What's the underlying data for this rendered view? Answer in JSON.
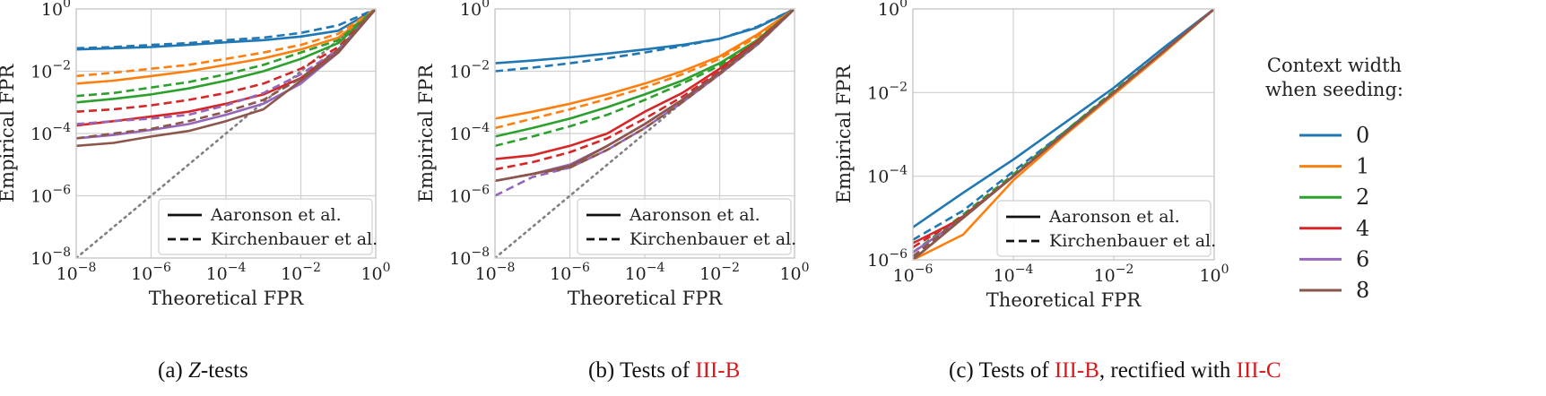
{
  "colors": {
    "0": "#1f77b4",
    "1": "#ff7f0e",
    "2": "#2ca02c",
    "4": "#d62728",
    "6": "#9467bd",
    "8": "#8c564b",
    "diag": "#808080"
  },
  "context_legend": {
    "title_line1": "Context width",
    "title_line2": "when seeding:",
    "entries": [
      "0",
      "1",
      "2",
      "4",
      "6",
      "8"
    ]
  },
  "captions": {
    "a": {
      "prefix": "(a) ",
      "italic": "Z",
      "suffix": "-tests"
    },
    "b": {
      "prefix": "(b) Tests of ",
      "ref1": "III-B"
    },
    "c": {
      "prefix": "(c) Tests of ",
      "ref1": "III-B",
      "middle": ", rectified with ",
      "ref2": "III-C"
    }
  },
  "chart_data": [
    {
      "type": "line",
      "title": "",
      "xlabel": "Theoretical FPR",
      "ylabel": "Empirical FPR",
      "xscale": "log",
      "yscale": "log",
      "xlim": [
        1e-08,
        1
      ],
      "ylim": [
        1e-08,
        1
      ],
      "xticks": [
        "10^-8",
        "10^-6",
        "10^-4",
        "10^-2",
        "10^0"
      ],
      "yticks": [
        "10^-8",
        "10^-6",
        "10^-4",
        "10^-2",
        "10^0"
      ],
      "legend": {
        "placement": "lower-right",
        "entries": [
          "Aaronson et al.",
          "Kirchenbauer et al."
        ]
      },
      "x": [
        1e-08,
        1e-07,
        1e-06,
        1e-05,
        0.0001,
        0.001,
        0.01,
        0.1,
        1
      ],
      "diagonal": true,
      "series": [
        {
          "name": "0",
          "method": "Aaronson et al.",
          "values": [
            0.05,
            0.055,
            0.06,
            0.07,
            0.085,
            0.1,
            0.13,
            0.2,
            1
          ]
        },
        {
          "name": "0",
          "method": "Kirchenbauer et al.",
          "values": [
            0.055,
            0.06,
            0.07,
            0.08,
            0.1,
            0.12,
            0.17,
            0.3,
            1
          ]
        },
        {
          "name": "1",
          "method": "Aaronson et al.",
          "values": [
            0.004,
            0.005,
            0.007,
            0.01,
            0.016,
            0.026,
            0.05,
            0.12,
            1
          ]
        },
        {
          "name": "1",
          "method": "Kirchenbauer et al.",
          "values": [
            0.007,
            0.009,
            0.012,
            0.016,
            0.025,
            0.04,
            0.07,
            0.16,
            1
          ]
        },
        {
          "name": "2",
          "method": "Aaronson et al.",
          "values": [
            0.001,
            0.0013,
            0.0018,
            0.0028,
            0.005,
            0.01,
            0.025,
            0.08,
            1
          ]
        },
        {
          "name": "2",
          "method": "Kirchenbauer et al.",
          "values": [
            0.0016,
            0.002,
            0.003,
            0.0045,
            0.008,
            0.016,
            0.04,
            0.1,
            1
          ]
        },
        {
          "name": "4",
          "method": "Aaronson et al.",
          "values": [
            0.00018,
            0.00025,
            0.00035,
            0.0005,
            0.0009,
            0.0018,
            0.006,
            0.05,
            1
          ]
        },
        {
          "name": "4",
          "method": "Kirchenbauer et al.",
          "values": [
            0.0005,
            0.0006,
            0.0008,
            0.0012,
            0.002,
            0.004,
            0.012,
            0.06,
            1
          ]
        },
        {
          "name": "6",
          "method": "Aaronson et al.",
          "values": [
            7e-05,
            9e-05,
            0.00013,
            0.0002,
            0.0004,
            0.0009,
            0.004,
            0.04,
            1
          ]
        },
        {
          "name": "6",
          "method": "Kirchenbauer et al.",
          "values": [
            0.0002,
            0.00025,
            0.0003,
            0.0004,
            0.0008,
            0.002,
            0.008,
            0.05,
            1
          ]
        },
        {
          "name": "8",
          "method": "Aaronson et al.",
          "values": [
            4e-05,
            5e-05,
            8e-05,
            0.00012,
            0.00025,
            0.0006,
            0.005,
            0.04,
            1
          ]
        },
        {
          "name": "8",
          "method": "Kirchenbauer et al.",
          "values": [
            7e-05,
            0.0001,
            0.00014,
            0.00025,
            0.0005,
            0.0012,
            0.006,
            0.05,
            1
          ]
        }
      ]
    },
    {
      "type": "line",
      "title": "",
      "xlabel": "Theoretical FPR",
      "ylabel": "Empirical FPR",
      "xscale": "log",
      "yscale": "log",
      "xlim": [
        1e-08,
        1
      ],
      "ylim": [
        1e-08,
        1
      ],
      "xticks": [
        "10^-8",
        "10^-6",
        "10^-4",
        "10^-2",
        "10^0"
      ],
      "yticks": [
        "10^-8",
        "10^-6",
        "10^-4",
        "10^-2",
        "10^0"
      ],
      "legend": {
        "placement": "lower-right",
        "entries": [
          "Aaronson et al.",
          "Kirchenbauer et al."
        ]
      },
      "x": [
        1e-08,
        1e-07,
        1e-06,
        1e-05,
        0.0001,
        0.001,
        0.01,
        0.1,
        1
      ],
      "diagonal": true,
      "series": [
        {
          "name": "0",
          "method": "Aaronson et al.",
          "values": [
            0.018,
            0.022,
            0.028,
            0.037,
            0.05,
            0.07,
            0.11,
            0.25,
            1
          ]
        },
        {
          "name": "0",
          "method": "Kirchenbauer et al.",
          "values": [
            0.01,
            0.013,
            0.018,
            0.026,
            0.04,
            0.065,
            0.11,
            0.27,
            1
          ]
        },
        {
          "name": "1",
          "method": "Aaronson et al.",
          "values": [
            0.0003,
            0.0005,
            0.0009,
            0.0018,
            0.004,
            0.01,
            0.03,
            0.15,
            1
          ]
        },
        {
          "name": "1",
          "method": "Kirchenbauer et al.",
          "values": [
            0.00015,
            0.0003,
            0.0006,
            0.0013,
            0.003,
            0.008,
            0.025,
            0.13,
            1
          ]
        },
        {
          "name": "2",
          "method": "Aaronson et al.",
          "values": [
            8e-05,
            0.00015,
            0.0003,
            0.0007,
            0.0018,
            0.005,
            0.018,
            0.1,
            1
          ]
        },
        {
          "name": "2",
          "method": "Kirchenbauer et al.",
          "values": [
            4e-05,
            8e-05,
            0.00017,
            0.0004,
            0.0012,
            0.004,
            0.015,
            0.09,
            1
          ]
        },
        {
          "name": "4",
          "method": "Aaronson et al.",
          "values": [
            1.5e-05,
            2e-05,
            4e-05,
            0.0001,
            0.0005,
            0.002,
            0.012,
            0.09,
            1
          ]
        },
        {
          "name": "4",
          "method": "Kirchenbauer et al.",
          "values": [
            7e-06,
            1.2e-05,
            2.5e-05,
            7e-05,
            0.0003,
            0.0015,
            0.01,
            0.08,
            1
          ]
        },
        {
          "name": "6",
          "method": "Aaronson et al.",
          "values": [
            3e-06,
            5e-06,
            1e-05,
            4e-05,
            0.0002,
            0.0012,
            0.009,
            0.08,
            1
          ]
        },
        {
          "name": "6",
          "method": "Kirchenbauer et al.",
          "values": [
            1e-06,
            4e-06,
            8e-06,
            3e-05,
            0.00015,
            0.001,
            0.008,
            0.07,
            1
          ]
        },
        {
          "name": "8",
          "method": "Aaronson et al.",
          "values": [
            3e-06,
            5e-06,
            9e-06,
            4e-05,
            0.0002,
            0.0012,
            0.009,
            0.08,
            1
          ]
        },
        {
          "name": "8",
          "method": "Kirchenbauer et al.",
          "values": [
            3e-06,
            5e-06,
            8e-06,
            3e-05,
            0.00015,
            0.001,
            0.008,
            0.07,
            1
          ]
        }
      ]
    },
    {
      "type": "line",
      "title": "",
      "xlabel": "Theoretical FPR",
      "ylabel": "Empirical FPR",
      "xscale": "log",
      "yscale": "log",
      "xlim": [
        1e-06,
        1
      ],
      "ylim": [
        1e-06,
        1
      ],
      "xticks": [
        "10^-6",
        "10^-4",
        "10^-2",
        "10^0"
      ],
      "yticks": [
        "10^-6",
        "10^-4",
        "10^-2",
        "10^0"
      ],
      "legend": {
        "placement": "lower-right",
        "entries": [
          "Aaronson et al.",
          "Kirchenbauer et al."
        ]
      },
      "x": [
        1e-06,
        1e-05,
        0.0001,
        0.001,
        0.01,
        0.1,
        1
      ],
      "diagonal": false,
      "series": [
        {
          "name": "0",
          "method": "Aaronson et al.",
          "values": [
            6e-06,
            4e-05,
            0.00025,
            0.0018,
            0.013,
            0.12,
            1
          ]
        },
        {
          "name": "0",
          "method": "Kirchenbauer et al.",
          "values": [
            3e-06,
            1.5e-05,
            0.00013,
            0.0011,
            0.01,
            0.1,
            1
          ]
        },
        {
          "name": "1",
          "method": "Aaronson et al.",
          "values": [
            1e-06,
            4e-06,
            8e-05,
            0.0009,
            0.009,
            0.09,
            1
          ]
        },
        {
          "name": "1",
          "method": "Kirchenbauer et al.",
          "values": [
            1e-06,
            1e-05,
            0.0001,
            0.001,
            0.01,
            0.1,
            1
          ]
        },
        {
          "name": "2",
          "method": "Aaronson et al.",
          "values": [
            1e-06,
            1e-05,
            0.0001,
            0.001,
            0.01,
            0.1,
            1
          ]
        },
        {
          "name": "2",
          "method": "Kirchenbauer et al.",
          "values": [
            1.5e-06,
            1.2e-05,
            0.00011,
            0.0011,
            0.011,
            0.1,
            1
          ]
        },
        {
          "name": "4",
          "method": "Aaronson et al.",
          "values": [
            2.5e-06,
            1e-05,
            0.0001,
            0.001,
            0.01,
            0.1,
            1
          ]
        },
        {
          "name": "4",
          "method": "Kirchenbauer et al.",
          "values": [
            2e-06,
            1.1e-05,
            0.0001,
            0.001,
            0.01,
            0.1,
            1
          ]
        },
        {
          "name": "6",
          "method": "Aaronson et al.",
          "values": [
            1.5e-06,
            1e-05,
            0.0001,
            0.001,
            0.01,
            0.1,
            1
          ]
        },
        {
          "name": "6",
          "method": "Kirchenbauer et al.",
          "values": [
            1.2e-06,
            1e-05,
            0.0001,
            0.001,
            0.01,
            0.1,
            1
          ]
        },
        {
          "name": "8",
          "method": "Aaronson et al.",
          "values": [
            1e-06,
            1e-05,
            0.0001,
            0.001,
            0.01,
            0.1,
            1
          ]
        },
        {
          "name": "8",
          "method": "Kirchenbauer et al.",
          "values": [
            1.2e-06,
            1.1e-05,
            0.0001,
            0.001,
            0.01,
            0.1,
            1
          ]
        }
      ]
    }
  ]
}
